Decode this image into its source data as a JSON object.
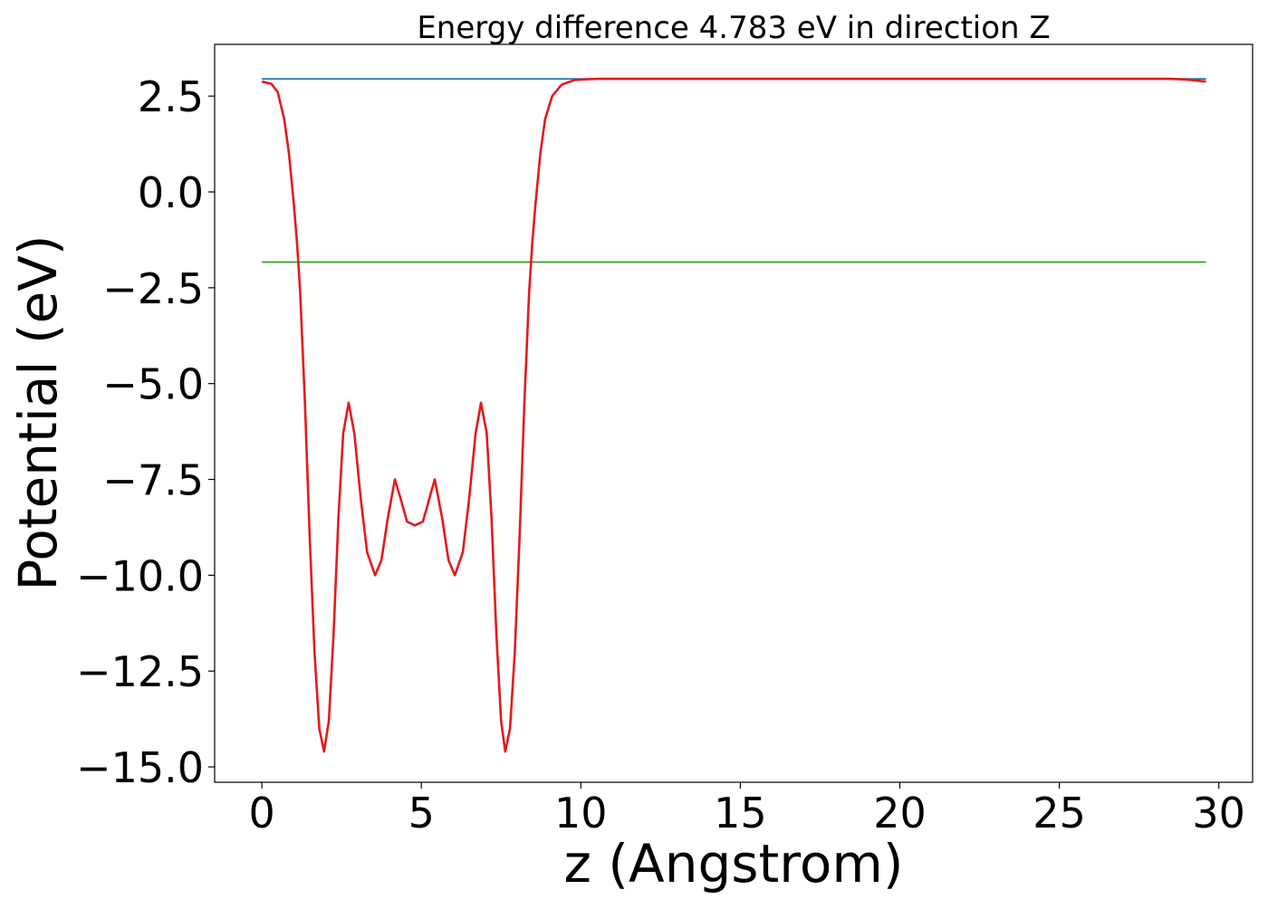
{
  "chart_data": {
    "type": "line",
    "title": "Energy difference 4.783 eV in direction Z",
    "x_label": "z (Angstrom)",
    "y_label": "Potential (eV)",
    "xlim": [
      -1.48,
      31.06
    ],
    "ylim": [
      -15.4,
      3.85
    ],
    "xticks": [
      0,
      5,
      10,
      15,
      20,
      25,
      30
    ],
    "yticks": [
      {
        "value": 2.5,
        "label": "2.5"
      },
      {
        "value": 0,
        "label": "0.0"
      },
      {
        "value": -2.5,
        "label": "−2.5"
      },
      {
        "value": -5,
        "label": "−5.0"
      },
      {
        "value": -7.5,
        "label": "−7.5"
      },
      {
        "value": -10,
        "label": "−10.0"
      },
      {
        "value": -12.5,
        "label": "−12.5"
      },
      {
        "value": -15,
        "label": "−15.0"
      }
    ],
    "series": [
      {
        "color": "#1f77b4",
        "x": [
          0,
          29.6
        ],
        "values": [
          2.95,
          2.95
        ]
      },
      {
        "color": "#2ca02c",
        "x": [
          0,
          29.6
        ],
        "values": [
          -1.83,
          -1.83
        ]
      },
      {
        "color": "#e41a1c",
        "x": [
          0,
          0.3,
          0.5,
          0.7,
          0.85,
          1.0,
          1.1,
          1.2,
          1.35,
          1.5,
          1.65,
          1.8,
          1.95,
          2.1,
          2.25,
          2.4,
          2.55,
          2.72,
          2.9,
          3.1,
          3.3,
          3.55,
          3.75,
          3.95,
          4.17,
          4.35,
          4.55,
          4.8,
          5.05,
          5.25,
          5.42,
          5.65,
          5.85,
          6.05,
          6.3,
          6.5,
          6.7,
          6.87,
          7.05,
          7.2,
          7.35,
          7.5,
          7.63,
          7.78,
          7.93,
          8.08,
          8.23,
          8.38,
          8.48,
          8.58,
          8.73,
          8.88,
          9.1,
          9.4,
          9.8,
          10.5,
          15,
          20,
          25,
          28.5,
          29.0,
          29.6
        ],
        "values": [
          2.88,
          2.82,
          2.6,
          1.9,
          1.0,
          -0.3,
          -1.3,
          -2.6,
          -5.5,
          -9.0,
          -12.0,
          -14.0,
          -14.6,
          -13.8,
          -11.5,
          -8.5,
          -6.3,
          -5.5,
          -6.3,
          -8.0,
          -9.4,
          -10.0,
          -9.6,
          -8.5,
          -7.5,
          -8.0,
          -8.6,
          -8.7,
          -8.6,
          -8.0,
          -7.5,
          -8.5,
          -9.6,
          -10.0,
          -9.4,
          -8.0,
          -6.3,
          -5.5,
          -6.3,
          -8.5,
          -11.5,
          -13.8,
          -14.6,
          -14.0,
          -12.0,
          -9.0,
          -5.5,
          -2.6,
          -1.3,
          -0.3,
          1.0,
          1.9,
          2.5,
          2.8,
          2.92,
          2.95,
          2.95,
          2.95,
          2.95,
          2.95,
          2.93,
          2.88
        ]
      }
    ]
  }
}
